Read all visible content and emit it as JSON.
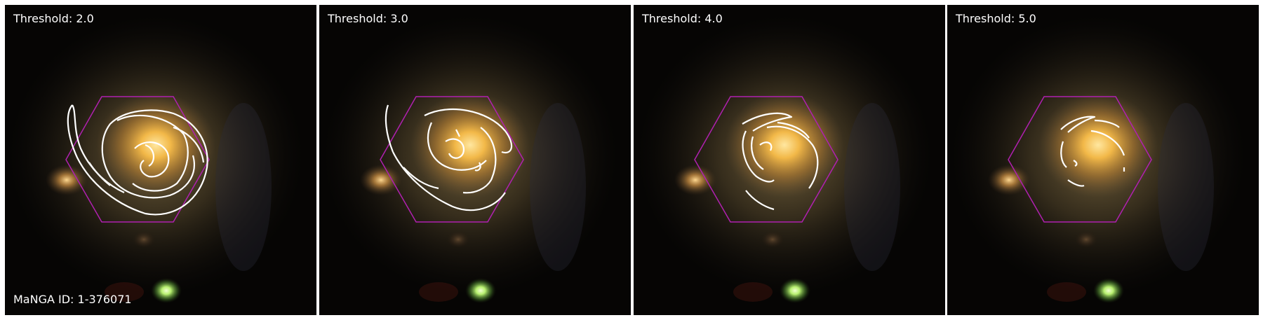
{
  "figure": {
    "panels": [
      {
        "threshold_label": "Threshold: 2.0",
        "id_label": "MaNGA ID: 1-376071"
      },
      {
        "threshold_label": "Threshold: 3.0",
        "id_label": ""
      },
      {
        "threshold_label": "Threshold: 4.0",
        "id_label": ""
      },
      {
        "threshold_label": "Threshold: 5.0",
        "id_label": ""
      }
    ]
  },
  "colors": {
    "background": "#060504",
    "galaxy_core": "#f2b848",
    "galaxy_halo": "#7d6a3c",
    "hexagon_outline": "#b020b0",
    "contour": "#ffffff",
    "green_source": "#b8f070",
    "label_text": "#ffffff"
  }
}
